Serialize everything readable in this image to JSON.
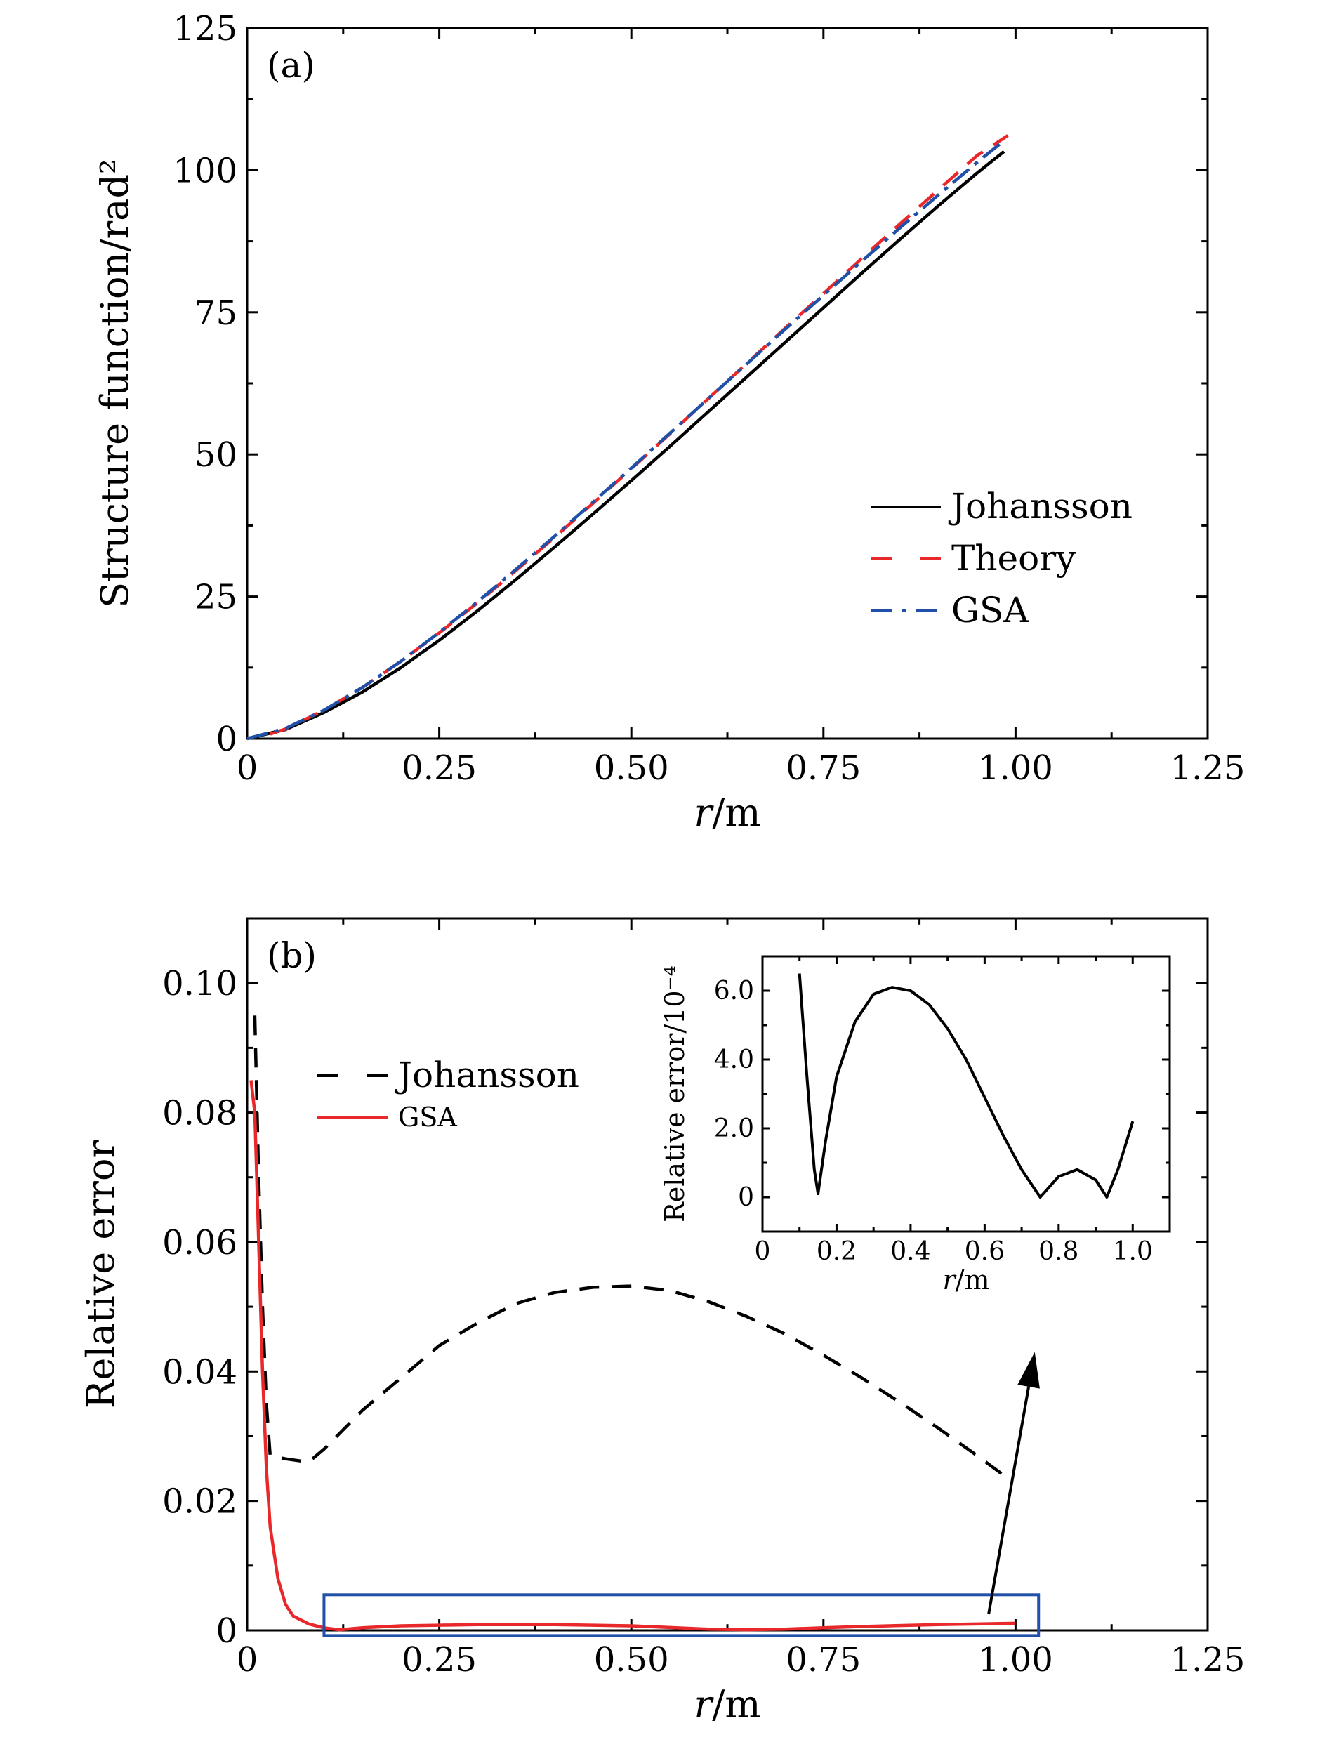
{
  "colors": {
    "johansson": "#000000",
    "theory": "#e8282b",
    "gsa": "#2150a8",
    "gsa_error": "#e8282b",
    "highlight_box": "#2150a8"
  },
  "chart_data": [
    {
      "type": "line",
      "panel_label": "(a)",
      "xlabel": "r/m",
      "ylabel": "Structure function/rad²",
      "xlim": [
        0,
        1.25
      ],
      "ylim": [
        0,
        125
      ],
      "xticks": [
        0,
        0.25,
        0.5,
        0.75,
        1.0,
        1.25
      ],
      "xtick_labels": [
        "0",
        "0.25",
        "0.50",
        "0.75",
        "1.00",
        "1.25"
      ],
      "yticks": [
        0,
        25,
        50,
        75,
        100,
        125
      ],
      "ytick_labels": [
        "0",
        "25",
        "50",
        "75",
        "100",
        "125"
      ],
      "legend_position": "lower-right",
      "series": [
        {
          "name": "Johansson",
          "style": "solid",
          "x": [
            0,
            0.05,
            0.1,
            0.15,
            0.2,
            0.25,
            0.3,
            0.35,
            0.4,
            0.45,
            0.5,
            0.55,
            0.6,
            0.65,
            0.7,
            0.75,
            0.8,
            0.85,
            0.9,
            0.95,
            0.985
          ],
          "y": [
            0,
            1.6,
            4.6,
            8.2,
            12.5,
            17.3,
            22.5,
            28.0,
            33.7,
            39.5,
            45.4,
            51.4,
            57.5,
            63.6,
            69.7,
            75.8,
            81.9,
            87.9,
            93.8,
            99.5,
            103.3
          ]
        },
        {
          "name": "Theory",
          "style": "dashed",
          "x": [
            0.03,
            0.05,
            0.1,
            0.15,
            0.2,
            0.25,
            0.3,
            0.35,
            0.4,
            0.45,
            0.5,
            0.55,
            0.6,
            0.65,
            0.7,
            0.75,
            0.8,
            0.85,
            0.9,
            0.95,
            0.99
          ],
          "y": [
            0.8,
            1.7,
            5.0,
            9.0,
            13.6,
            18.6,
            23.9,
            29.6,
            35.4,
            41.4,
            47.5,
            53.6,
            59.8,
            66.0,
            72.2,
            78.3,
            84.5,
            90.6,
            96.6,
            102.6,
            106.1
          ]
        },
        {
          "name": "GSA",
          "style": "dash-dot",
          "x": [
            0,
            0.05,
            0.1,
            0.15,
            0.2,
            0.25,
            0.3,
            0.35,
            0.4,
            0.45,
            0.5,
            0.55,
            0.6,
            0.65,
            0.7,
            0.75,
            0.8,
            0.85,
            0.9,
            0.95,
            0.985
          ],
          "y": [
            0,
            1.8,
            5.0,
            9.0,
            13.6,
            18.7,
            24.1,
            29.8,
            35.6,
            41.6,
            47.6,
            53.7,
            59.8,
            65.9,
            72.0,
            78.0,
            84.0,
            89.9,
            95.7,
            101.4,
            105.2
          ]
        }
      ]
    },
    {
      "type": "line",
      "panel_label": "(b)",
      "xlabel": "r/m",
      "ylabel": "Relative error",
      "xlim": [
        0,
        1.25
      ],
      "ylim": [
        0,
        0.11
      ],
      "xticks": [
        0,
        0.25,
        0.5,
        0.75,
        1.0,
        1.25
      ],
      "xtick_labels": [
        "0",
        "0.25",
        "0.50",
        "0.75",
        "1.00",
        "1.25"
      ],
      "yticks": [
        0,
        0.02,
        0.04,
        0.06,
        0.08,
        0.1
      ],
      "ytick_labels": [
        "0",
        "0.02",
        "0.04",
        "0.06",
        "0.08",
        "0.10"
      ],
      "legend_position": "upper-left",
      "series": [
        {
          "name": "Johansson",
          "style": "dashed",
          "x": [
            0.01,
            0.015,
            0.02,
            0.025,
            0.03,
            0.05,
            0.08,
            0.1,
            0.15,
            0.2,
            0.25,
            0.3,
            0.35,
            0.4,
            0.45,
            0.5,
            0.55,
            0.6,
            0.65,
            0.7,
            0.75,
            0.8,
            0.85,
            0.9,
            0.95,
            0.99
          ],
          "y": [
            0.095,
            0.07,
            0.05,
            0.035,
            0.027,
            0.0265,
            0.026,
            0.028,
            0.034,
            0.039,
            0.044,
            0.0475,
            0.0505,
            0.0522,
            0.053,
            0.0532,
            0.0525,
            0.0508,
            0.0485,
            0.0458,
            0.0425,
            0.039,
            0.0352,
            0.0312,
            0.027,
            0.0235
          ]
        },
        {
          "name": "GSA",
          "style": "solid",
          "x": [
            0.005,
            0.01,
            0.015,
            0.02,
            0.025,
            0.03,
            0.04,
            0.05,
            0.06,
            0.08,
            0.1,
            0.12,
            0.15,
            0.2,
            0.25,
            0.3,
            0.35,
            0.4,
            0.5,
            0.6,
            0.65,
            0.7,
            0.75,
            0.8,
            0.9,
            1.0
          ],
          "y": [
            0.085,
            0.08,
            0.06,
            0.04,
            0.025,
            0.016,
            0.008,
            0.004,
            0.0022,
            0.001,
            0.0004,
            0.0001,
            0.0004,
            0.0007,
            0.0008,
            0.0009,
            0.0009,
            0.0009,
            0.0007,
            0.0002,
            0.0001,
            0.0002,
            0.0004,
            0.0006,
            0.0009,
            0.0011
          ]
        }
      ],
      "highlight_box": {
        "x_range": [
          0.1,
          1.03
        ],
        "y_range": [
          -0.0008,
          0.0055
        ]
      },
      "arrow": {
        "from": [
          0.965,
          0.0025
        ],
        "to": [
          1.025,
          0.043
        ]
      }
    },
    {
      "type": "line",
      "inset": true,
      "xlabel": "r/m",
      "ylabel": "Relative error/10⁻⁴",
      "xlim": [
        0,
        1.1
      ],
      "ylim": [
        -1.0,
        7.0
      ],
      "xticks": [
        0,
        0.2,
        0.4,
        0.6,
        0.8,
        1.0
      ],
      "xtick_labels": [
        "0",
        "0.2",
        "0.4",
        "0.6",
        "0.8",
        "1.0"
      ],
      "yticks": [
        0,
        2.0,
        4.0,
        6.0
      ],
      "ytick_labels": [
        "0",
        "2.0",
        "4.0",
        "6.0"
      ],
      "series": [
        {
          "name": "",
          "style": "solid",
          "x": [
            0.1,
            0.12,
            0.14,
            0.15,
            0.17,
            0.2,
            0.25,
            0.3,
            0.35,
            0.4,
            0.45,
            0.5,
            0.55,
            0.6,
            0.65,
            0.7,
            0.75,
            0.8,
            0.85,
            0.9,
            0.93,
            0.96,
            1.0
          ],
          "y": [
            6.5,
            3.5,
            0.8,
            0.1,
            1.6,
            3.5,
            5.1,
            5.9,
            6.1,
            6.0,
            5.6,
            4.9,
            4.0,
            2.9,
            1.8,
            0.8,
            0.0,
            0.6,
            0.8,
            0.5,
            0.0,
            0.8,
            2.2
          ]
        }
      ]
    }
  ]
}
